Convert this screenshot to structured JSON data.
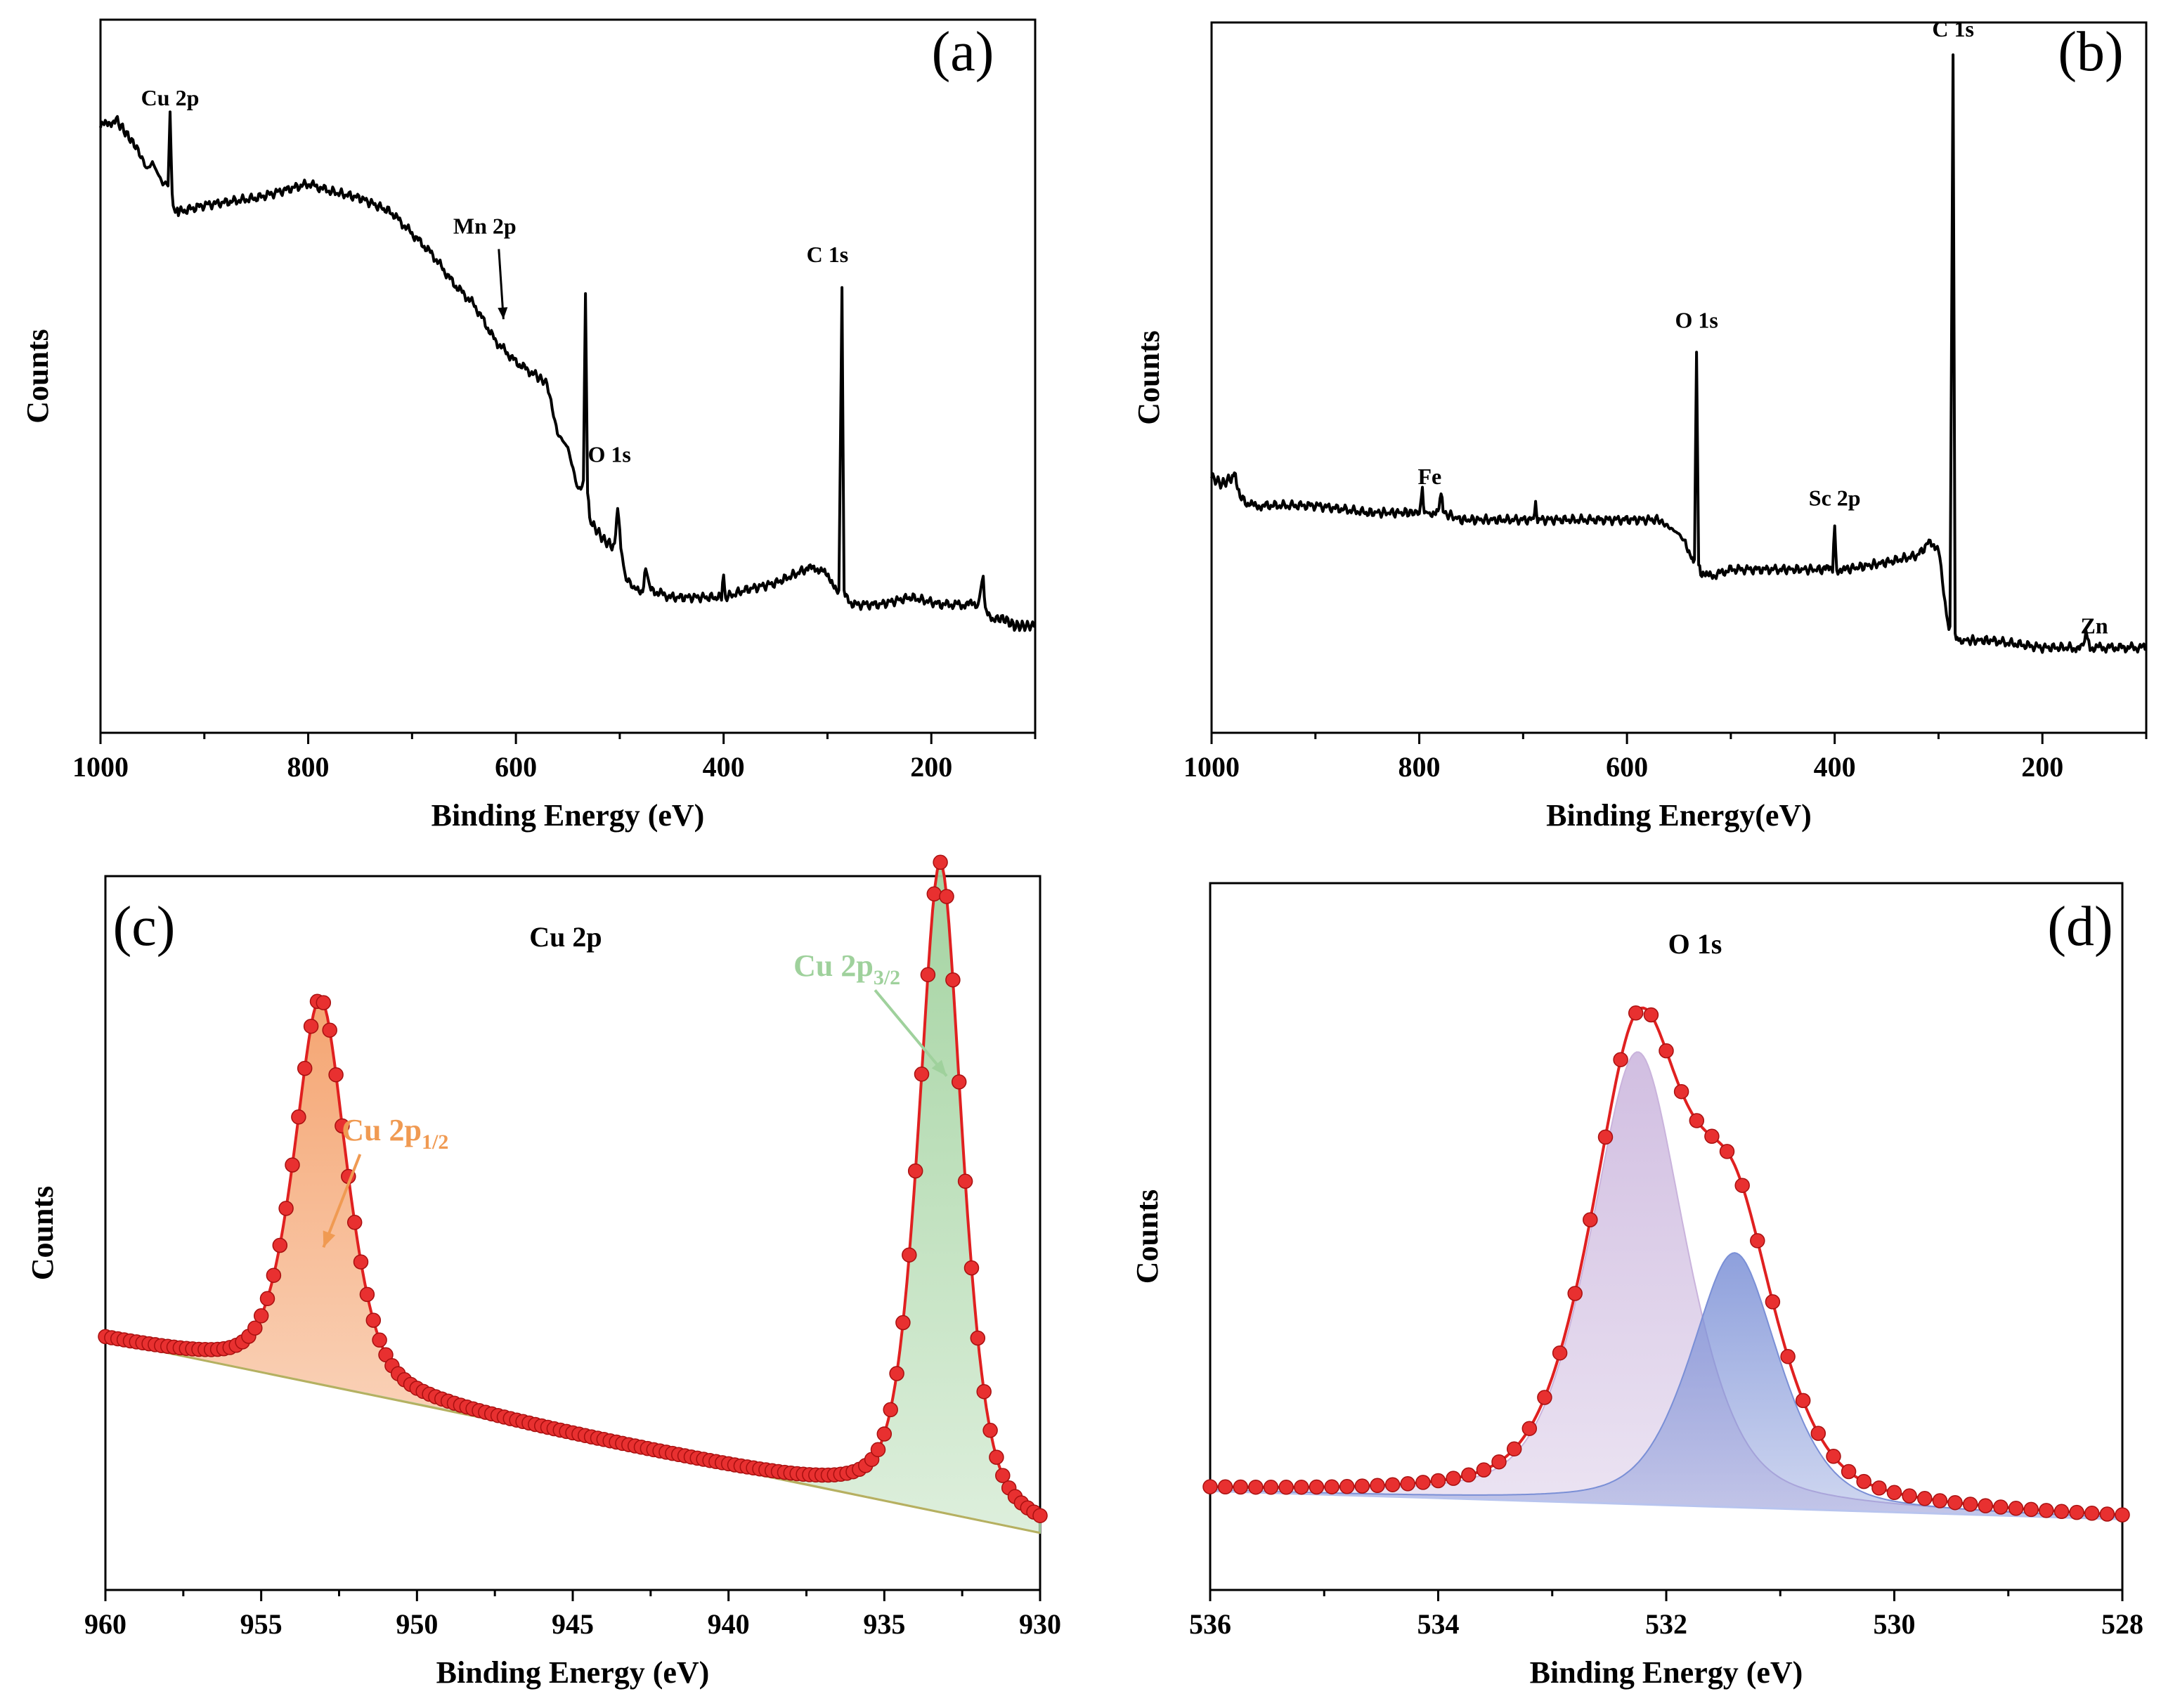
{
  "chart_data": [
    {
      "panel": "(a)",
      "type": "line",
      "title": "",
      "xlabel": "Binding Energy (eV)",
      "ylabel": "Counts",
      "xlim": [
        1000,
        100
      ],
      "xticks": [
        1000,
        800,
        600,
        400,
        200
      ],
      "grid": false,
      "series": [
        {
          "name": "survey-a",
          "color": "#000000",
          "x": [
            1000,
            985,
            975,
            965,
            955,
            950,
            940,
            935,
            933,
            931,
            928,
            925,
            900,
            850,
            800,
            780,
            750,
            720,
            700,
            680,
            660,
            640,
            620,
            600,
            580,
            570,
            560,
            550,
            540,
            535,
            533,
            531,
            529,
            525,
            515,
            505,
            502,
            499,
            495,
            485,
            478,
            475,
            470,
            450,
            420,
            402,
            400,
            398,
            380,
            350,
            320,
            305,
            297,
            289,
            286,
            284,
            282,
            275,
            250,
            220,
            190,
            170,
            155,
            150,
            148,
            140,
            130,
            120,
            110,
            100
          ],
          "y": [
            0.85,
            0.86,
            0.84,
            0.82,
            0.79,
            0.8,
            0.77,
            0.77,
            0.87,
            0.75,
            0.73,
            0.73,
            0.74,
            0.75,
            0.77,
            0.76,
            0.75,
            0.73,
            0.7,
            0.67,
            0.63,
            0.6,
            0.55,
            0.52,
            0.5,
            0.49,
            0.42,
            0.4,
            0.34,
            0.35,
            0.62,
            0.34,
            0.3,
            0.29,
            0.27,
            0.26,
            0.32,
            0.26,
            0.22,
            0.2,
            0.2,
            0.23,
            0.2,
            0.19,
            0.19,
            0.19,
            0.22,
            0.19,
            0.2,
            0.21,
            0.23,
            0.23,
            0.21,
            0.2,
            0.62,
            0.2,
            0.19,
            0.18,
            0.18,
            0.19,
            0.18,
            0.18,
            0.18,
            0.22,
            0.17,
            0.16,
            0.16,
            0.15,
            0.15,
            0.15
          ]
        }
      ],
      "annotations": [
        {
          "text": "Cu 2p",
          "x": 933,
          "y": 0.88
        },
        {
          "text": "Mn 2p",
          "x": 630,
          "y": 0.7,
          "arrow_to": [
            612,
            0.58
          ]
        },
        {
          "text": "O 1s",
          "x": 510,
          "y": 0.38
        },
        {
          "text": "C 1s",
          "x": 300,
          "y": 0.66
        }
      ]
    },
    {
      "panel": "(b)",
      "type": "line",
      "title": "",
      "xlabel": "Binding Energy(eV)",
      "ylabel": "Counts",
      "xlim": [
        1000,
        100
      ],
      "xticks": [
        1000,
        800,
        600,
        400,
        200
      ],
      "grid": false,
      "series": [
        {
          "name": "survey-b",
          "color": "#000000",
          "x": [
            1000,
            990,
            980,
            978,
            975,
            965,
            950,
            900,
            850,
            810,
            800,
            797,
            795,
            790,
            782,
            779,
            777,
            760,
            720,
            690,
            688,
            686,
            650,
            600,
            570,
            560,
            550,
            545,
            538,
            535,
            533,
            531,
            529,
            520,
            500,
            450,
            410,
            402,
            400,
            398,
            390,
            350,
            320,
            308,
            300,
            295,
            291,
            289,
            286,
            284,
            282,
            278,
            250,
            200,
            170,
            162,
            158,
            154,
            140,
            120,
            100
          ],
          "y": [
            0.36,
            0.35,
            0.36,
            0.37,
            0.34,
            0.32,
            0.32,
            0.32,
            0.31,
            0.31,
            0.31,
            0.34,
            0.31,
            0.31,
            0.31,
            0.34,
            0.31,
            0.3,
            0.3,
            0.3,
            0.32,
            0.3,
            0.3,
            0.3,
            0.3,
            0.29,
            0.28,
            0.27,
            0.25,
            0.24,
            0.54,
            0.24,
            0.22,
            0.22,
            0.23,
            0.23,
            0.23,
            0.23,
            0.29,
            0.23,
            0.23,
            0.24,
            0.25,
            0.27,
            0.26,
            0.2,
            0.15,
            0.15,
            0.95,
            0.14,
            0.13,
            0.13,
            0.13,
            0.12,
            0.12,
            0.12,
            0.14,
            0.12,
            0.12,
            0.12,
            0.12
          ]
        }
      ],
      "annotations": [
        {
          "text": "Fe",
          "x": 790,
          "y": 0.35
        },
        {
          "text": "O 1s",
          "x": 533,
          "y": 0.57
        },
        {
          "text": "Sc 2p",
          "x": 400,
          "y": 0.32
        },
        {
          "text": "C 1s",
          "x": 286,
          "y": 0.98
        },
        {
          "text": "Zn",
          "x": 150,
          "y": 0.14
        }
      ]
    },
    {
      "panel": "(c)",
      "type": "line",
      "title": "Cu 2p",
      "xlabel": "Binding Energy (eV)",
      "ylabel": "Counts",
      "xlim": [
        960,
        930
      ],
      "xticks": [
        960,
        955,
        950,
        945,
        940,
        935,
        930
      ],
      "grid": false,
      "baseline": [
        0.35,
        0.08
      ],
      "peaks": [
        {
          "name": "Cu 2p1/2",
          "center": 953.1,
          "height": 0.54,
          "width": 0.9,
          "color": "#f4a06a"
        },
        {
          "name": "Cu 2p3/2",
          "center": 933.2,
          "height": 0.91,
          "width": 0.75,
          "color": "#9fd19c"
        }
      ],
      "series": [
        {
          "name": "fit-envelope",
          "color": "#e02020"
        },
        {
          "name": "background",
          "color": "#b5b060"
        }
      ],
      "annotations": [
        {
          "text": "Cu 2p",
          "sub": "1/2",
          "x": 950.7,
          "y": 0.63,
          "color": "#f09a52",
          "arrow_to": [
            953.0,
            0.48
          ]
        },
        {
          "text": "Cu 2p",
          "sub": "3/2",
          "x": 936.2,
          "y": 0.86,
          "color": "#9fd19c",
          "arrow_to": [
            933.0,
            0.72
          ]
        }
      ]
    },
    {
      "panel": "(d)",
      "type": "line",
      "title": "O 1s",
      "xlabel": "Binding Energy (eV)",
      "ylabel": "Counts",
      "xlim": [
        536,
        528
      ],
      "xticks": [
        536,
        534,
        532,
        530,
        528
      ],
      "grid": false,
      "baseline": [
        0.14,
        0.1
      ],
      "peaks": [
        {
          "name": "component-1",
          "center": 532.25,
          "height": 0.64,
          "width": 0.45,
          "color": "#c9b3dc"
        },
        {
          "name": "component-2",
          "center": 531.4,
          "height": 0.36,
          "width": 0.42,
          "color": "#7a8fd6"
        }
      ],
      "series": [
        {
          "name": "fit-envelope",
          "color": "#e02020"
        }
      ]
    }
  ]
}
